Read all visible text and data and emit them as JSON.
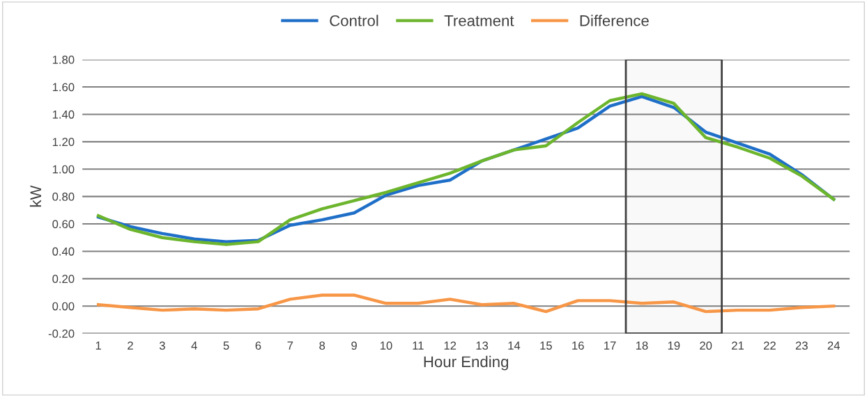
{
  "chart_data": {
    "type": "line",
    "xlabel": "Hour Ending",
    "ylabel": "kW",
    "x": [
      1,
      2,
      3,
      4,
      5,
      6,
      7,
      8,
      9,
      10,
      11,
      12,
      13,
      14,
      15,
      16,
      17,
      18,
      19,
      20,
      21,
      22,
      23,
      24
    ],
    "xlim": [
      0.5,
      24.5
    ],
    "xticks": [
      1,
      2,
      3,
      4,
      5,
      6,
      7,
      8,
      9,
      10,
      11,
      12,
      13,
      14,
      15,
      16,
      17,
      18,
      19,
      20,
      21,
      22,
      23,
      24
    ],
    "ylim": [
      -0.2,
      1.8
    ],
    "yticks": [
      {
        "value": -0.2,
        "label": "-0.20"
      },
      {
        "value": 0,
        "label": "0.00"
      },
      {
        "value": 0.2,
        "label": "0.20"
      },
      {
        "value": 0.4,
        "label": "0.40"
      },
      {
        "value": 0.6,
        "label": "0.60"
      },
      {
        "value": 0.8,
        "label": "0.80"
      },
      {
        "value": 1.0,
        "label": "1.00"
      },
      {
        "value": 1.2,
        "label": "1.20"
      },
      {
        "value": 1.4,
        "label": "1.40"
      },
      {
        "value": 1.6,
        "label": "1.60"
      },
      {
        "value": 1.8,
        "label": "1.80"
      }
    ],
    "grid": "y",
    "legend": "top",
    "marker": "none",
    "line_style": "solid",
    "series": [
      {
        "name": "Control",
        "color": "#1f6fc8",
        "values": [
          0.65,
          0.58,
          0.53,
          0.49,
          0.47,
          0.48,
          0.59,
          0.63,
          0.68,
          0.81,
          0.88,
          0.92,
          1.06,
          1.14,
          1.22,
          1.3,
          1.46,
          1.53,
          1.45,
          1.27,
          1.19,
          1.11,
          0.96,
          0.78
        ]
      },
      {
        "name": "Treatment",
        "color": "#6cb52d",
        "values": [
          0.66,
          0.56,
          0.5,
          0.47,
          0.45,
          0.47,
          0.63,
          0.71,
          0.77,
          0.83,
          0.9,
          0.97,
          1.06,
          1.14,
          1.17,
          1.34,
          1.5,
          1.55,
          1.48,
          1.23,
          1.16,
          1.08,
          0.95,
          0.78
        ]
      },
      {
        "name": "Difference",
        "color": "#f79646",
        "values": [
          0.01,
          -0.01,
          -0.03,
          -0.02,
          -0.03,
          -0.02,
          0.05,
          0.08,
          0.08,
          0.02,
          0.02,
          0.05,
          0.01,
          0.02,
          -0.04,
          0.04,
          0.04,
          0.02,
          0.03,
          -0.04,
          -0.03,
          -0.03,
          -0.01,
          0.0
        ]
      }
    ],
    "bands": [
      {
        "axis": "x",
        "from": 17.5,
        "to": 20.5,
        "color": "#404040"
      }
    ]
  }
}
